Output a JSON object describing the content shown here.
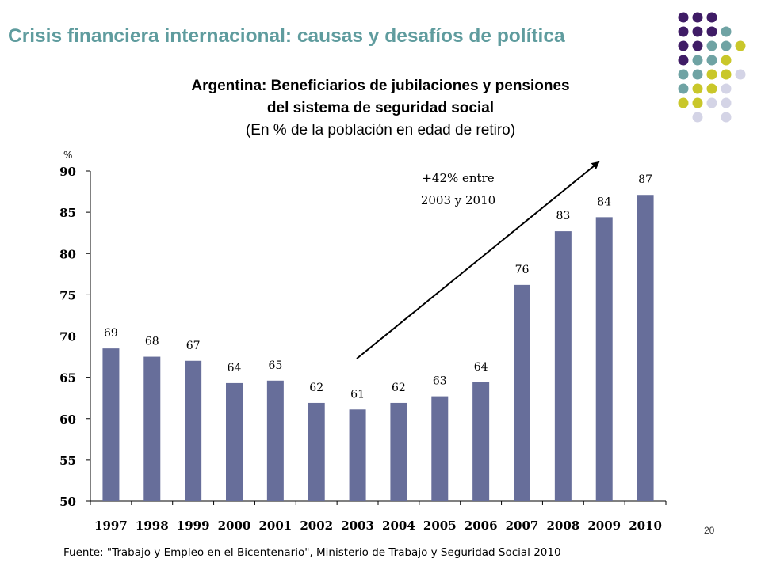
{
  "slide": {
    "header_title": "Crisis financiera internacional: causas y desafíos de política",
    "page_number": "20",
    "source": "Fuente: \"Trabajo y Empleo en el Bicentenario\", Ministerio de Trabajo y Seguridad Social 2010"
  },
  "colors": {
    "bar": "#676e9a",
    "header": "#5f9c9e",
    "dot_purple": "#3f1c66",
    "dot_teal": "#6fa3a4",
    "dot_yellow": "#c9c72a",
    "dot_lavender": "#d4d4e6"
  },
  "chart_data": {
    "type": "bar",
    "title": "Argentina: Beneficiarios de jubilaciones y pensiones",
    "title_line2": "del sistema de seguridad social",
    "subtitle": "(En % de la población en edad de retiro)",
    "ylabel": "%",
    "ylim": [
      50,
      90
    ],
    "yticks": [
      50,
      55,
      60,
      65,
      70,
      75,
      80,
      85,
      90
    ],
    "categories": [
      "1997",
      "1998",
      "1999",
      "2000",
      "2001",
      "2002",
      "2003",
      "2004",
      "2005",
      "2006",
      "2007",
      "2008",
      "2009",
      "2010"
    ],
    "values": [
      68.5,
      67.5,
      67.0,
      64.3,
      64.6,
      61.9,
      61.1,
      61.9,
      62.7,
      64.4,
      76.2,
      82.7,
      84.4,
      87.1
    ],
    "data_labels": [
      "69",
      "68",
      "67",
      "64",
      "65",
      "62",
      "61",
      "62",
      "63",
      "64",
      "76",
      "83",
      "84",
      "87"
    ],
    "annotation_line1": "+42% entre",
    "annotation_line2": "2003 y 2010",
    "grid": false,
    "legend": "none"
  }
}
